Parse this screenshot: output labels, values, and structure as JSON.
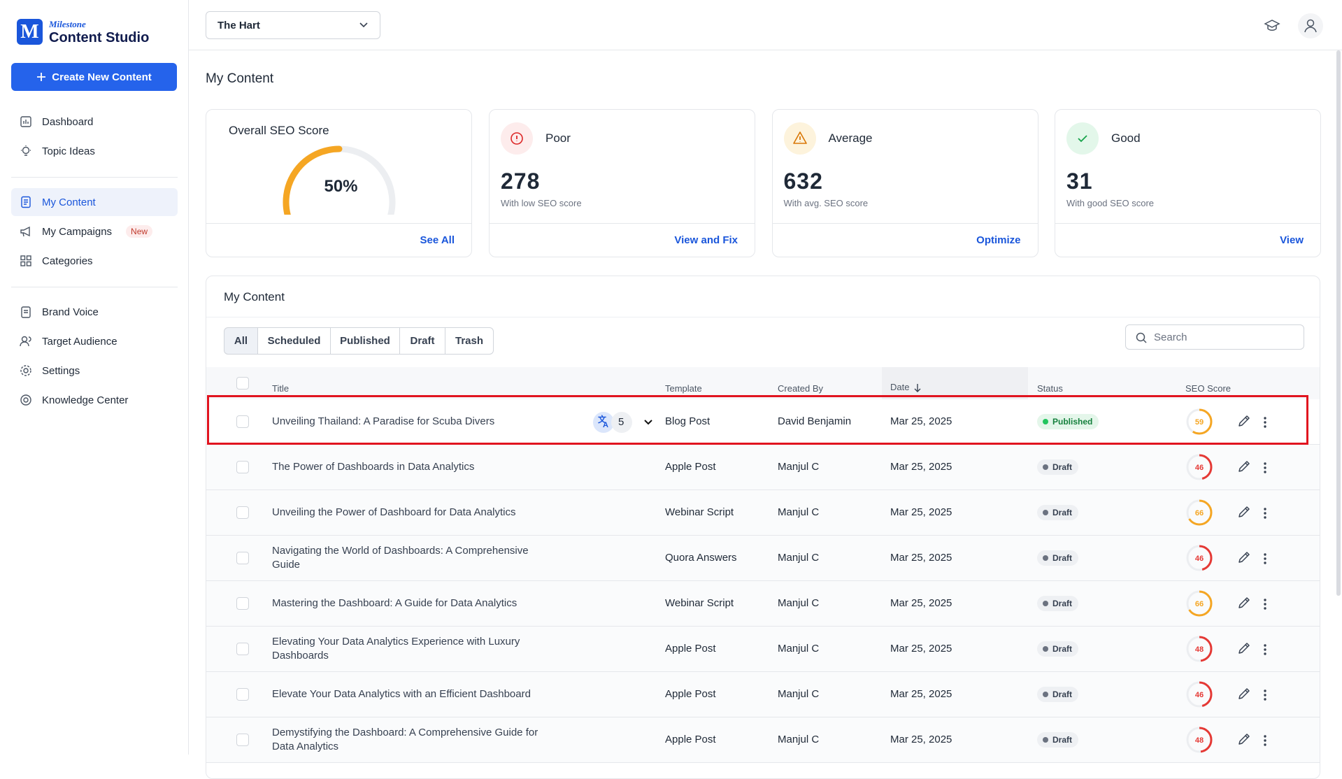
{
  "brand": {
    "small": "Milestone",
    "name": "Content Studio"
  },
  "create_button": "Create New Content",
  "nav_main": [
    "Dashboard",
    "Topic Ideas"
  ],
  "nav_content": [
    "My Content",
    "My Campaigns",
    "Categories"
  ],
  "new_badge": "New",
  "nav_settings": [
    "Brand Voice",
    "Target Audience",
    "Settings",
    "Knowledge Center"
  ],
  "site_select": "The Hart",
  "page_title": "My Content",
  "overall": {
    "title": "Overall SEO Score",
    "score": {
      "value": 50,
      "label": "50%"
    },
    "link": "See All"
  },
  "cards": [
    {
      "title": "Poor",
      "count": "278",
      "caption": "With low SEO score",
      "link": "View and Fix"
    },
    {
      "title": "Average",
      "count": "632",
      "caption": "With avg. SEO score",
      "link": "Optimize"
    },
    {
      "title": "Good",
      "count": "31",
      "caption": "With good SEO score",
      "link": "View"
    }
  ],
  "panel": {
    "title": "My Content",
    "tabs": [
      "All",
      "Scheduled",
      "Published",
      "Draft",
      "Trash"
    ],
    "search_placeholder": "Search",
    "columns": [
      "Title",
      "Template",
      "Created By",
      "Date",
      "Status",
      "SEO Score"
    ],
    "rows": [
      {
        "title": "Unveiling Thailand: A Paradise for Scuba Divers",
        "translations": 5,
        "template": "Blog Post",
        "created_by": "David Benjamin",
        "date": "Mar 25, 2025",
        "status": "Published",
        "seo_score": 59
      },
      {
        "title": "The Power of Dashboards in Data Analytics",
        "template": "Apple Post",
        "created_by": "Manjul C",
        "date": "Mar 25, 2025",
        "status": "Draft",
        "seo_score": 46
      },
      {
        "title": "Unveiling the Power of Dashboard for Data Analytics",
        "template": "Webinar Script",
        "created_by": "Manjul C",
        "date": "Mar 25, 2025",
        "status": "Draft",
        "seo_score": 66
      },
      {
        "title": "Navigating the World of Dashboards: A Comprehensive Guide",
        "template": "Quora Answers",
        "created_by": "Manjul C",
        "date": "Mar 25, 2025",
        "status": "Draft",
        "seo_score": 46
      },
      {
        "title": "Mastering the Dashboard: A Guide for Data Analytics",
        "template": "Webinar Script",
        "created_by": "Manjul C",
        "date": "Mar 25, 2025",
        "status": "Draft",
        "seo_score": 66
      },
      {
        "title": "Elevating Your Data Analytics Experience with Luxury Dashboards",
        "template": "Apple Post",
        "created_by": "Manjul C",
        "date": "Mar 25, 2025",
        "status": "Draft",
        "seo_score": 48
      },
      {
        "title": "Elevate Your Data Analytics with an Efficient Dashboard",
        "template": "Apple Post",
        "created_by": "Manjul C",
        "date": "Mar 25, 2025",
        "status": "Draft",
        "seo_score": 46
      },
      {
        "title": "Demystifying the Dashboard: A Comprehensive Guide for Data Analytics",
        "template": "Apple Post",
        "created_by": "Manjul C",
        "date": "Mar 25, 2025",
        "status": "Draft",
        "seo_score": 48
      }
    ]
  }
}
